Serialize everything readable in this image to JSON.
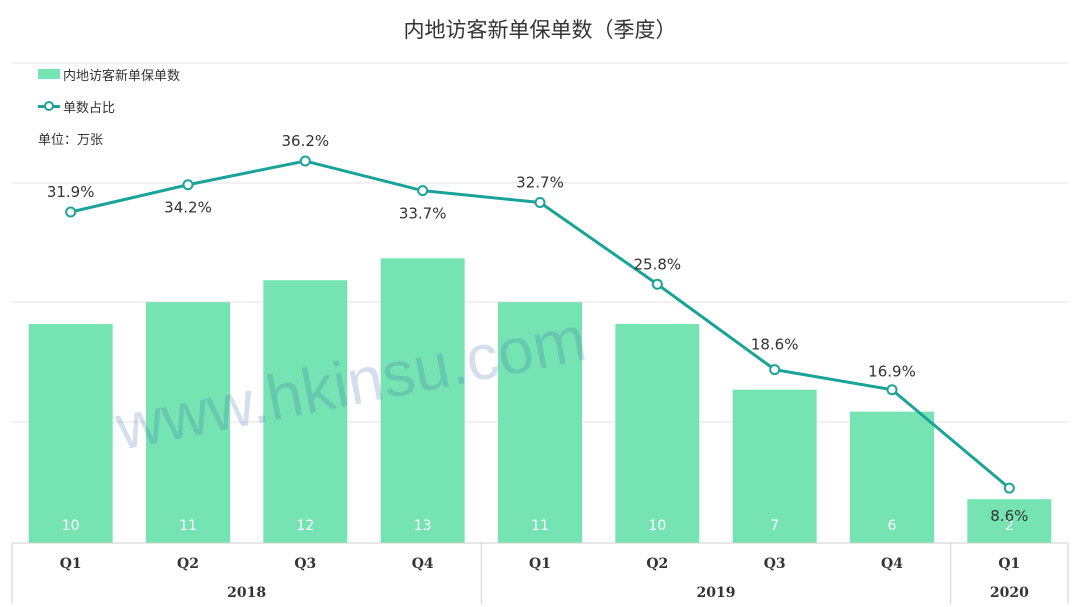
{
  "chart_data": {
    "type": "bar",
    "title": "内地访客新单保单数（季度）",
    "unit_label": "单位：万张",
    "legend": {
      "bar_label": "内地访客新单保单数",
      "line_label": "单数占比",
      "placement": "top-left"
    },
    "categories": [
      "Q1",
      "Q2",
      "Q3",
      "Q4",
      "Q1",
      "Q2",
      "Q3",
      "Q4",
      "Q1"
    ],
    "groups": [
      {
        "label": "2018",
        "span": 4
      },
      {
        "label": "2019",
        "span": 4
      },
      {
        "label": "2020",
        "span": 1
      }
    ],
    "series": [
      {
        "name": "内地访客新单保单数",
        "type": "bar",
        "values": [
          10,
          11,
          12,
          13,
          11,
          10,
          7,
          6,
          2
        ],
        "value_labels": [
          "10",
          "11",
          "12",
          "13",
          "11",
          "10",
          "7",
          "6",
          "2"
        ],
        "color": "#76e4b2"
      },
      {
        "name": "单数占比",
        "type": "line",
        "values": [
          31.9,
          34.2,
          36.2,
          33.7,
          32.7,
          25.8,
          18.6,
          16.9,
          8.6
        ],
        "value_labels": [
          "31.9%",
          "34.2%",
          "36.2%",
          "33.7%",
          "32.7%",
          "25.8%",
          "18.6%",
          "16.9%",
          "8.6%"
        ],
        "color": "#1aa398"
      }
    ],
    "y_bar_range": [
      0,
      15
    ],
    "y_line_range": [
      0,
      45
    ],
    "grid": true
  },
  "watermark": "www.hkinsu.com"
}
